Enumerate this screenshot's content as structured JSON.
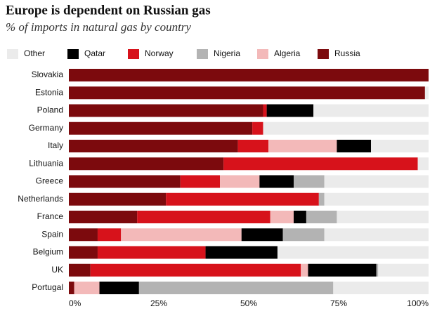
{
  "chart_data": {
    "type": "stacked-barh",
    "title": "Europe is dependent on Russian gas",
    "subtitle": "% of imports in natural gas by country",
    "categories": [
      "Slovakia",
      "Estonia",
      "Poland",
      "Germany",
      "Italy",
      "Lithuania",
      "Greece",
      "Netherlands",
      "France",
      "Spain",
      "Belgium",
      "UK",
      "Portugal"
    ],
    "series": [
      {
        "name": "Other",
        "color": "#ebebeb",
        "values": [
          0,
          1,
          32,
          46,
          16,
          3,
          29,
          29,
          25.5,
          29,
          42,
          14,
          26.5
        ]
      },
      {
        "name": "Qatar",
        "color": "#000000",
        "values": [
          0,
          0,
          13,
          0,
          9.5,
          0,
          9.5,
          0,
          3.5,
          11.5,
          20,
          19,
          11
        ]
      },
      {
        "name": "Norway",
        "color": "#d7121b",
        "values": [
          0,
          0,
          1,
          3,
          8.5,
          54,
          11,
          42.5,
          37,
          6.5,
          30,
          58.5,
          0
        ]
      },
      {
        "name": "Nigeria",
        "color": "#b3b3b3",
        "values": [
          0,
          0,
          0,
          0,
          0,
          0,
          8.5,
          1.5,
          8.5,
          11.5,
          0,
          0.5,
          54
        ]
      },
      {
        "name": "Algeria",
        "color": "#f3b9b9",
        "values": [
          0,
          0,
          0,
          0,
          19,
          0,
          11,
          0,
          6.5,
          33.5,
          0,
          2,
          7
        ]
      },
      {
        "name": "Russia",
        "color": "#7c0a0d",
        "values": [
          100,
          99,
          54,
          51,
          47,
          43,
          31,
          27,
          19,
          8,
          8,
          6,
          1.5
        ]
      }
    ],
    "xlim": [
      0,
      100
    ],
    "xticks": [
      {
        "value": 0,
        "label": "0%"
      },
      {
        "value": 25,
        "label": "25%"
      },
      {
        "value": 50,
        "label": "50%"
      },
      {
        "value": 75,
        "label": "75%"
      },
      {
        "value": 100,
        "label": "100%"
      }
    ],
    "legend": "top"
  }
}
